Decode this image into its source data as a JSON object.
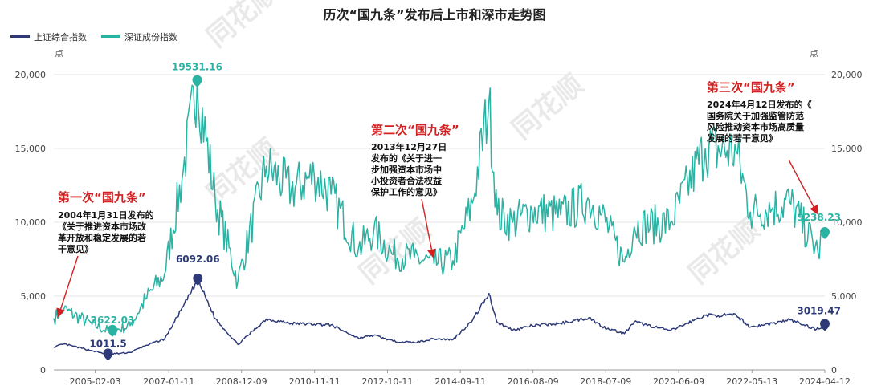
{
  "chart_data": {
    "type": "line",
    "title": "历次“国九条”发布后上市和深市走势图",
    "y_unit_left": "点",
    "y_unit_right": "点",
    "ylim": [
      0,
      20000
    ],
    "y_ticks": [
      "0",
      "5,000",
      "10,000",
      "15,000",
      "20,000"
    ],
    "x_tick_labels": [
      "2005-02-03",
      "2007-01-11",
      "2008-12-09",
      "2010-11-11",
      "2012-10-11",
      "2014-09-11",
      "2016-08-09",
      "2018-07-09",
      "2020-06-09",
      "2022-05-13",
      "2024-04-12"
    ],
    "grid": true,
    "legend_position": "top-left",
    "colors": {
      "sh": "#2e3a78",
      "sz": "#2ab3a3",
      "annotation": "#d42020"
    },
    "series": [
      {
        "name": "上证综合指数",
        "x": [
          "2004-01-02",
          "2004-04-07",
          "2005-01-04",
          "2005-06-06",
          "2006-01-04",
          "2006-06-01",
          "2006-12-01",
          "2007-05-29",
          "2007-10-16",
          "2008-04-01",
          "2008-11-04",
          "2009-08-04",
          "2010-04-01",
          "2010-11-08",
          "2011-04-18",
          "2012-01-06",
          "2012-06-01",
          "2012-12-04",
          "2013-06-25",
          "2014-01-02",
          "2014-07-01",
          "2015-01-05",
          "2015-06-12",
          "2015-09-01",
          "2016-01-28",
          "2016-08-01",
          "2017-05-01",
          "2018-01-29",
          "2018-06-01",
          "2019-01-04",
          "2019-04-08",
          "2020-03-23",
          "2021-02-18",
          "2021-12-13",
          "2022-04-27",
          "2022-12-01",
          "2023-05-09",
          "2024-01-22",
          "2024-04-12"
        ],
        "values": [
          1540,
          1750,
          1300,
          1050,
          1180,
          1650,
          2100,
          4300,
          6092,
          3470,
          1720,
          3450,
          3150,
          3100,
          3050,
          2150,
          2350,
          1950,
          1850,
          2110,
          2050,
          3350,
          5180,
          3200,
          2700,
          3000,
          3150,
          3550,
          2950,
          2450,
          3250,
          2660,
          3700,
          3700,
          2900,
          3150,
          3400,
          2750,
          3019.47
        ]
      },
      {
        "name": "深证成份指数",
        "x": [
          "2004-01-02",
          "2004-04-07",
          "2005-01-04",
          "2005-06-06",
          "2005-07-18",
          "2006-01-04",
          "2006-06-01",
          "2006-12-01",
          "2007-05-29",
          "2007-10-10",
          "2008-04-01",
          "2008-11-04",
          "2009-08-04",
          "2010-04-01",
          "2010-11-08",
          "2011-04-18",
          "2012-01-06",
          "2012-06-01",
          "2012-12-04",
          "2013-06-25",
          "2014-01-02",
          "2014-07-01",
          "2015-01-05",
          "2015-06-12",
          "2015-09-01",
          "2016-01-28",
          "2016-08-01",
          "2017-05-01",
          "2018-01-29",
          "2018-06-01",
          "2019-01-04",
          "2019-04-08",
          "2020-03-23",
          "2021-02-18",
          "2021-12-13",
          "2022-04-27",
          "2022-12-01",
          "2023-05-09",
          "2024-02-05",
          "2024-04-12"
        ],
        "values": [
          3500,
          4100,
          3100,
          2650,
          2622.03,
          3000,
          4800,
          6500,
          13500,
          19531.16,
          11500,
          6000,
          13800,
          12200,
          13200,
          11900,
          8200,
          9400,
          7800,
          7600,
          7200,
          7400,
          11300,
          18200,
          10500,
          10000,
          10800,
          10500,
          11500,
          10500,
          7300,
          9700,
          10000,
          15000,
          14800,
          10700,
          11000,
          11400,
          8000,
          9238.23
        ]
      }
    ],
    "peak_labels": {
      "sz_2004": "1011.5",
      "sz_2007": "6092.06",
      "sz_2024": "3019.47",
      "cy_2005": "2622.03",
      "cy_2007": "19531.16",
      "cy_2024": "9238.23"
    },
    "annotations": [
      {
        "title": "第一次“国九条”",
        "lines": [
          "2004年1月31日发布的",
          "《关于推进资本市场改",
          "革开放和稳定发展的若",
          "干意见》"
        ]
      },
      {
        "title": "第二次“国九条”",
        "lines": [
          "2013年12月27日",
          "发布的《关于进一",
          "步加强资本市场中",
          "小投资者合法权益",
          "保护工作的意见》"
        ]
      },
      {
        "title": "第三次“国九条”",
        "lines": [
          "2024年4月12日发布的《",
          "国务院关于加强监管防范",
          "风险推动资本市场高质量",
          "发展的若干意见》"
        ]
      }
    ],
    "watermark": "同花顺"
  }
}
